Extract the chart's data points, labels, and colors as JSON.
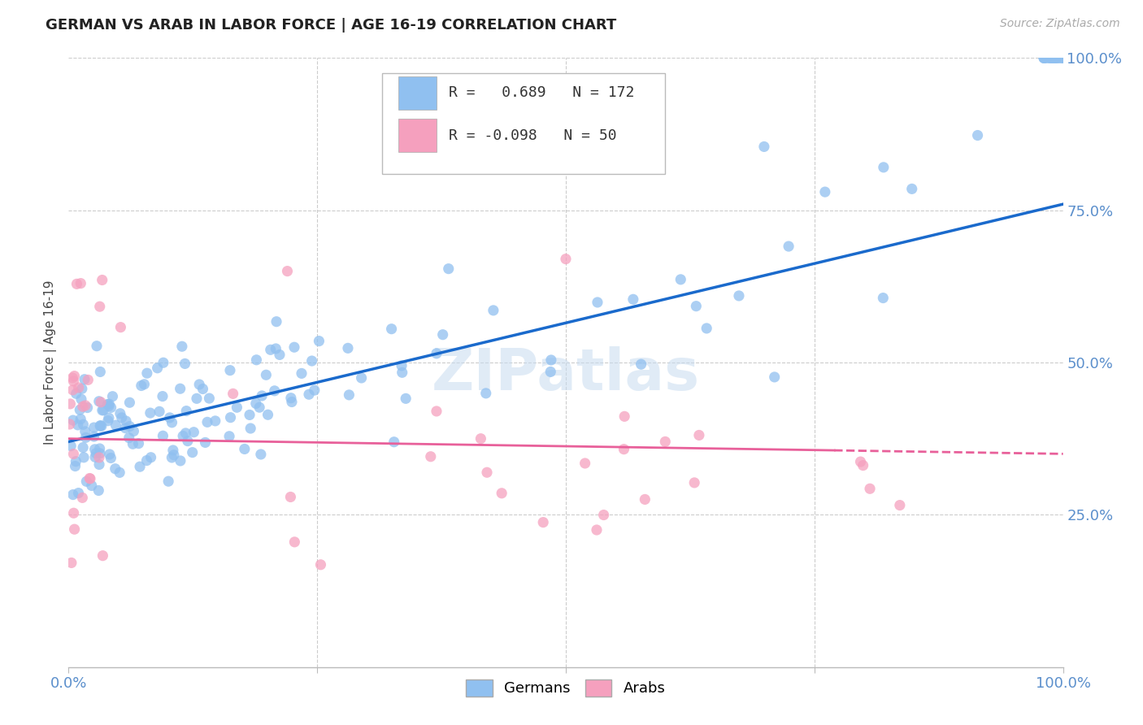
{
  "title": "GERMAN VS ARAB IN LABOR FORCE | AGE 16-19 CORRELATION CHART",
  "source": "Source: ZipAtlas.com",
  "ylabel": "In Labor Force | Age 16-19",
  "german_R": 0.689,
  "german_N": 172,
  "arab_R": -0.098,
  "arab_N": 50,
  "german_color": "#90C0F0",
  "arab_color": "#F5A0BE",
  "german_line_color": "#1A6ACC",
  "arab_line_color": "#E8609A",
  "watermark_text": "ZIPatlas",
  "xlim": [
    0.0,
    1.0
  ],
  "ylim": [
    0.0,
    1.0
  ],
  "grid_color": "#CCCCCC",
  "background_color": "#FFFFFF",
  "title_fontsize": 13,
  "tick_label_color": "#5B8FCC",
  "ylabel_color": "#444444",
  "source_color": "#AAAAAA"
}
